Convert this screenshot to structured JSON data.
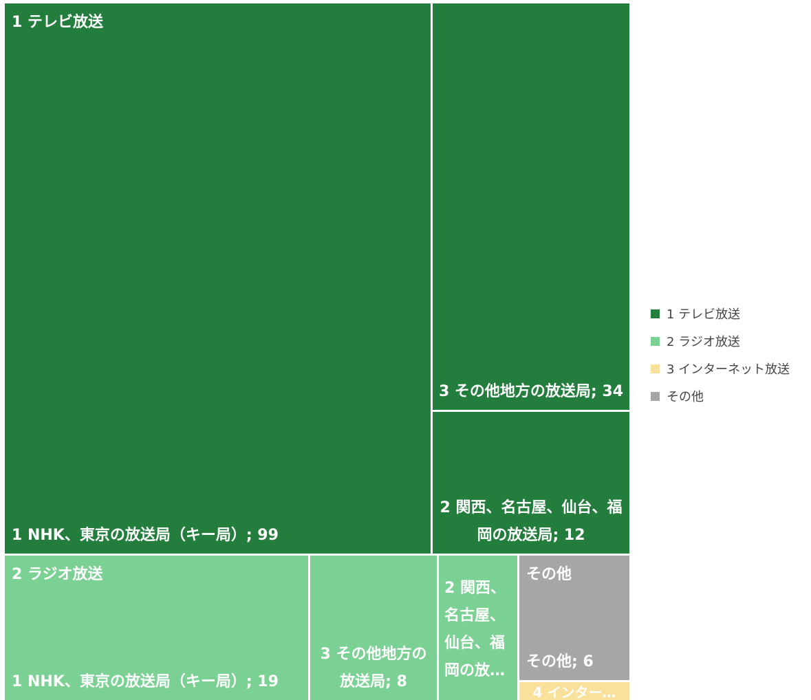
{
  "chart_data": {
    "type": "treemap",
    "groups": [
      {
        "name": "1 テレビ放送",
        "color": "#237e3d",
        "items": [
          {
            "label": "1 NHK、東京の放送局（キー局）; 99",
            "value": 99
          },
          {
            "label": "3 その他地方の放送局; 34",
            "value": 34
          },
          {
            "label": "2 関西、名古屋、仙台、福岡の放送局; 12",
            "value": 12
          }
        ]
      },
      {
        "name": "2 ラジオ放送",
        "color": "#7bd193",
        "items": [
          {
            "label": "1 NHK、東京の放送局（キー局）; 19",
            "value": 19
          },
          {
            "label": "3 その他地方の放送局; 8",
            "value": 8
          },
          {
            "label": "2 関西、名古屋、仙台、福岡の放…",
            "value": 5
          }
        ]
      },
      {
        "name": "その他",
        "color": "#a6a6a6",
        "items": [
          {
            "label": "その他; 6",
            "value": 6
          }
        ]
      },
      {
        "name": "3 インターネット放送",
        "color": "#f9e19b",
        "items": [
          {
            "label": "4 インター…",
            "value": 1
          }
        ]
      }
    ],
    "legend": [
      {
        "label": "1 テレビ放送",
        "color": "#237e3d"
      },
      {
        "label": "2 ラジオ放送",
        "color": "#7bd193"
      },
      {
        "label": "3 インターネット放送",
        "color": "#f9e19b"
      },
      {
        "label": "その他",
        "color": "#a6a6a6"
      }
    ],
    "legend_position": "right"
  }
}
